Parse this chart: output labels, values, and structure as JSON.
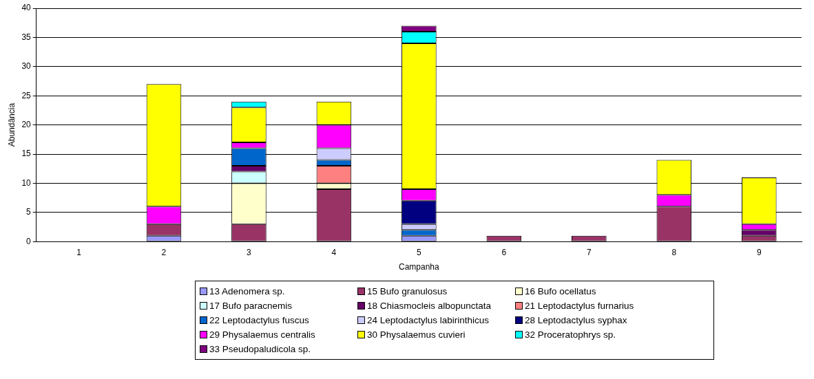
{
  "chart_data": {
    "type": "bar",
    "stacked": true,
    "xlabel": "Campanha",
    "ylabel": "Abundância",
    "categories": [
      "1",
      "2",
      "3",
      "4",
      "5",
      "6",
      "7",
      "8",
      "9"
    ],
    "ylim": [
      0,
      40
    ],
    "yticks": [
      0,
      5,
      10,
      15,
      20,
      25,
      30,
      35,
      40
    ],
    "grid": "y",
    "legend": "bottom",
    "series": [
      {
        "name": "13 Adenomera sp.",
        "color": "#9999ff",
        "values": [
          null,
          1,
          null,
          null,
          1,
          null,
          null,
          null,
          null
        ]
      },
      {
        "name": "15 Bufo granulosus",
        "color": "#993366",
        "values": [
          null,
          2,
          3,
          9,
          null,
          1,
          1,
          6,
          1
        ]
      },
      {
        "name": "16 Bufo ocellatus",
        "color": "#ffffcc",
        "values": [
          null,
          null,
          7,
          1,
          null,
          null,
          null,
          null,
          null
        ]
      },
      {
        "name": "17 Bufo paracnemis",
        "color": "#ccffff",
        "values": [
          null,
          null,
          2,
          null,
          null,
          null,
          null,
          null,
          null
        ]
      },
      {
        "name": "18 Chiasmocleis albopunctata",
        "color": "#660066",
        "values": [
          null,
          null,
          1,
          null,
          null,
          null,
          null,
          null,
          1
        ]
      },
      {
        "name": "21 Leptodactylus furnarius",
        "color": "#ff8080",
        "values": [
          null,
          null,
          null,
          3,
          null,
          null,
          null,
          null,
          null
        ]
      },
      {
        "name": "22 Leptodactylus fuscus",
        "color": "#0066cc",
        "values": [
          null,
          null,
          3,
          1,
          1,
          null,
          null,
          null,
          null
        ]
      },
      {
        "name": "24 Leptodactylus labirinthicus",
        "color": "#ccccff",
        "values": [
          null,
          null,
          null,
          2,
          1,
          null,
          null,
          null,
          null
        ]
      },
      {
        "name": "28 Leptodactylus syphax",
        "color": "#000080",
        "values": [
          null,
          null,
          null,
          null,
          4,
          null,
          null,
          null,
          null
        ]
      },
      {
        "name": "29 Physalaemus centralis",
        "color": "#ff00ff",
        "values": [
          null,
          3,
          1,
          4,
          2,
          null,
          null,
          2,
          1
        ]
      },
      {
        "name": "30 Physalaemus cuvieri",
        "color": "#ffff00",
        "values": [
          null,
          21,
          6,
          4,
          25,
          null,
          null,
          6,
          8
        ]
      },
      {
        "name": "32 Proceratophrys sp.",
        "color": "#00ffff",
        "values": [
          null,
          null,
          1,
          null,
          2,
          null,
          null,
          null,
          null
        ]
      },
      {
        "name": "33 Pseudopaludicola sp.",
        "color": "#800080",
        "values": [
          null,
          null,
          null,
          null,
          1,
          null,
          null,
          null,
          null
        ]
      }
    ]
  }
}
